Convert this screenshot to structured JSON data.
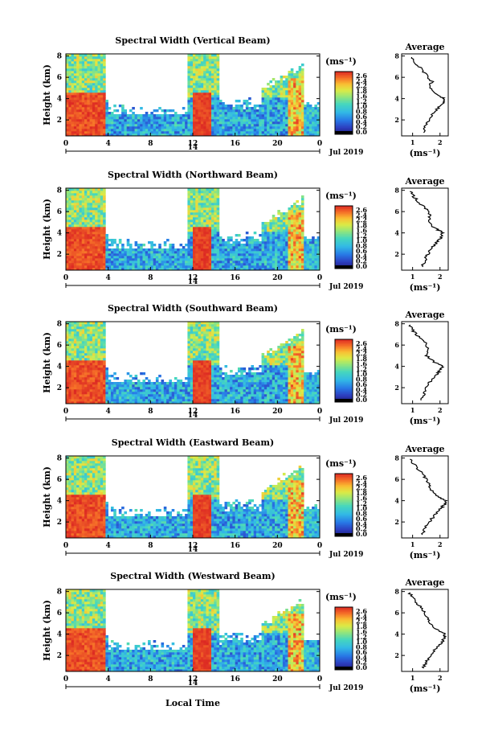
{
  "figure": {
    "x_axis_label": "Local Time",
    "date_label": "Jul 2019",
    "colorbar_unit_label": "(ms⁻¹)",
    "colorbar_ticks": [
      "2.6",
      "2.4",
      "2.2",
      "1.8",
      "1.6",
      "1.2",
      "1.0",
      "0.8",
      "0.6",
      "0.4",
      "0.2",
      "0.0"
    ],
    "average_title": "Average",
    "average_xlabel": "(ms⁻¹)",
    "time_ticks": [
      "0",
      "4",
      "8",
      "12",
      "16",
      "20",
      "0"
    ],
    "day_label": "14",
    "colors": {
      "low": "#2b2f8f",
      "mid": "#3fc8d8",
      "high": "#e8322a",
      "cutoff": "#000000"
    }
  },
  "chart_data": [
    {
      "type": "heatmap",
      "title": "Spectral Width (Vertical Beam)",
      "ylabel": "Height (km)",
      "xlabel": "Local Time",
      "x_ticks": [
        0,
        4,
        8,
        12,
        16,
        20,
        24
      ],
      "y_ticks": [
        2,
        4,
        6,
        8
      ],
      "ylim": [
        0.5,
        8.2
      ],
      "clim": [
        0.0,
        2.7
      ],
      "average_profile": {
        "title": "Average",
        "xlabel": "(ms⁻¹)",
        "x_ticks": [
          1,
          2
        ],
        "y_ticks": [
          2,
          4,
          6,
          8
        ],
        "height_km": [
          0.8,
          1.4,
          2.0,
          2.6,
          3.2,
          3.6,
          4.0,
          4.4,
          5.0,
          5.6,
          6.2,
          6.8,
          7.4,
          8.0
        ],
        "width": [
          1.4,
          1.45,
          1.6,
          1.75,
          1.95,
          2.1,
          2.15,
          1.9,
          1.6,
          1.7,
          1.5,
          1.3,
          1.1,
          0.9
        ]
      }
    },
    {
      "type": "heatmap",
      "title": "Spectral Width (Northward Beam)",
      "ylabel": "Height (km)",
      "xlabel": "Local Time",
      "x_ticks": [
        0,
        4,
        8,
        12,
        16,
        20,
        24
      ],
      "y_ticks": [
        2,
        4,
        6,
        8
      ],
      "ylim": [
        0.5,
        8.2
      ],
      "clim": [
        0.0,
        2.7
      ],
      "average_profile": {
        "title": "Average",
        "xlabel": "(ms⁻¹)",
        "x_ticks": [
          1,
          2
        ],
        "y_ticks": [
          2,
          4,
          6,
          8
        ],
        "height_km": [
          0.8,
          1.4,
          2.0,
          2.6,
          3.2,
          3.6,
          4.0,
          4.4,
          5.0,
          5.6,
          6.2,
          6.8,
          7.4,
          8.0
        ],
        "width": [
          1.35,
          1.45,
          1.55,
          1.7,
          1.9,
          2.05,
          2.1,
          1.85,
          1.55,
          1.65,
          1.5,
          1.25,
          1.05,
          0.9
        ]
      }
    },
    {
      "type": "heatmap",
      "title": "Spectral Width (Southward Beam)",
      "ylabel": "Height (km)",
      "xlabel": "Local Time",
      "x_ticks": [
        0,
        4,
        8,
        12,
        16,
        20,
        24
      ],
      "y_ticks": [
        2,
        4,
        6,
        8
      ],
      "ylim": [
        0.5,
        8.2
      ],
      "clim": [
        0.0,
        2.7
      ],
      "average_profile": {
        "title": "Average",
        "xlabel": "(ms⁻¹)",
        "x_ticks": [
          1,
          2
        ],
        "y_ticks": [
          2,
          4,
          6,
          8
        ],
        "height_km": [
          0.8,
          1.4,
          2.0,
          2.6,
          3.2,
          3.6,
          4.0,
          4.4,
          5.0,
          5.6,
          6.2,
          6.8,
          7.4,
          8.0
        ],
        "width": [
          1.3,
          1.4,
          1.5,
          1.65,
          1.85,
          2.0,
          2.1,
          1.8,
          1.5,
          1.6,
          1.45,
          1.2,
          1.0,
          0.85
        ]
      }
    },
    {
      "type": "heatmap",
      "title": "Spectral Width (Eastward Beam)",
      "ylabel": "Height (km)",
      "xlabel": "Local Time",
      "x_ticks": [
        0,
        4,
        8,
        12,
        16,
        20,
        24
      ],
      "y_ticks": [
        2,
        4,
        6,
        8
      ],
      "ylim": [
        0.5,
        8.2
      ],
      "clim": [
        0.0,
        2.7
      ],
      "average_profile": {
        "title": "Average",
        "xlabel": "(ms⁻¹)",
        "x_ticks": [
          1,
          2
        ],
        "y_ticks": [
          2,
          4,
          6,
          8
        ],
        "height_km": [
          0.8,
          1.4,
          2.0,
          2.6,
          3.2,
          3.6,
          4.0,
          4.4,
          5.0,
          5.6,
          6.2,
          6.8,
          7.4,
          8.0
        ],
        "width": [
          1.35,
          1.45,
          1.6,
          1.8,
          2.0,
          2.15,
          2.2,
          1.95,
          1.65,
          1.6,
          1.45,
          1.25,
          1.05,
          0.9
        ]
      }
    },
    {
      "type": "heatmap",
      "title": "Spectral Width (Westward Beam)",
      "ylabel": "Height (km)",
      "xlabel": "Local Time",
      "x_ticks": [
        0,
        4,
        8,
        12,
        16,
        20,
        24
      ],
      "y_ticks": [
        2,
        4,
        6,
        8
      ],
      "ylim": [
        0.5,
        8.2
      ],
      "clim": [
        0.0,
        2.7
      ],
      "average_profile": {
        "title": "Average",
        "xlabel": "(ms⁻¹)",
        "x_ticks": [
          1,
          2
        ],
        "y_ticks": [
          2,
          4,
          6,
          8
        ],
        "height_km": [
          0.8,
          1.4,
          2.0,
          2.6,
          3.2,
          3.6,
          4.0,
          4.4,
          5.0,
          5.6,
          6.2,
          6.8,
          7.4,
          8.0
        ],
        "width": [
          1.4,
          1.5,
          1.65,
          1.85,
          2.05,
          2.15,
          2.2,
          1.9,
          1.6,
          1.55,
          1.4,
          1.2,
          1.0,
          0.85
        ]
      }
    }
  ]
}
